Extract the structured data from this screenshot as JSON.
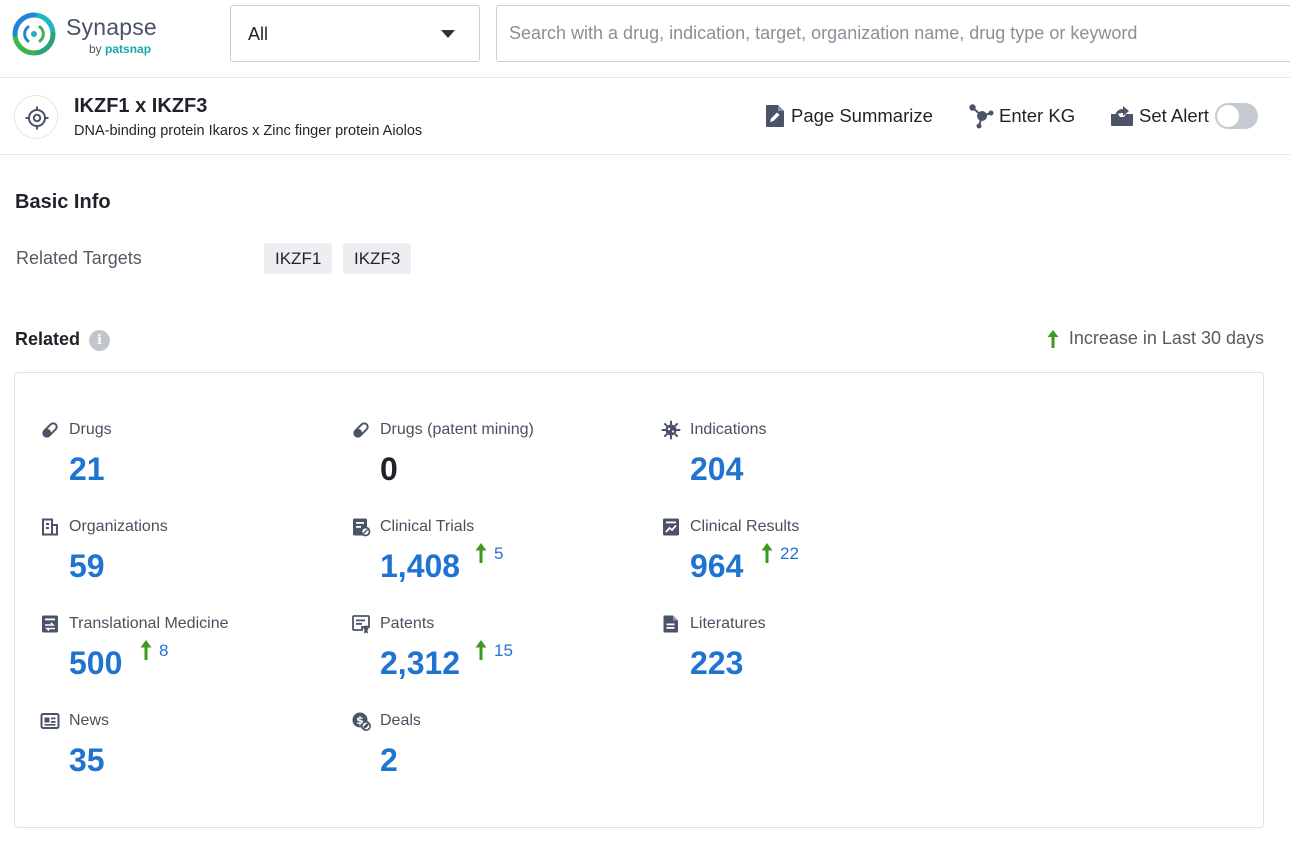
{
  "brand": {
    "name": "Synapse",
    "by_prefix": "by",
    "by_name": "patsnap"
  },
  "search": {
    "scope_value": "All",
    "placeholder": "Search with a drug, indication, target, organization name, drug type or keyword",
    "value": ""
  },
  "header": {
    "title": "IKZF1 x IKZF3",
    "subtitle": "DNA-binding protein Ikaros x Zinc finger protein Aiolos",
    "actions": {
      "summarize": "Page Summarize",
      "kg": "Enter KG",
      "alert": "Set Alert"
    },
    "alert_enabled": false
  },
  "basic_info": {
    "title": "Basic Info",
    "related_targets_label": "Related Targets",
    "related_targets": [
      "IKZF1",
      "IKZF3"
    ]
  },
  "related": {
    "title": "Related",
    "legend": "Increase in Last 30 days",
    "stats": [
      {
        "label": "Drugs",
        "value": "21",
        "increase": null,
        "icon": "pill-icon"
      },
      {
        "label": "Drugs (patent mining)",
        "value": "0",
        "increase": null,
        "icon": "pill-icon"
      },
      {
        "label": "Indications",
        "value": "204",
        "increase": null,
        "icon": "virus-icon"
      },
      {
        "label": "Organizations",
        "value": "59",
        "increase": null,
        "icon": "building-icon"
      },
      {
        "label": "Clinical Trials",
        "value": "1,408",
        "increase": "5",
        "icon": "clinical-trials-icon"
      },
      {
        "label": "Clinical Results",
        "value": "964",
        "increase": "22",
        "icon": "clinical-results-icon"
      },
      {
        "label": "Translational Medicine",
        "value": "500",
        "increase": "8",
        "icon": "translational-medicine-icon"
      },
      {
        "label": "Patents",
        "value": "2,312",
        "increase": "15",
        "icon": "patent-icon"
      },
      {
        "label": "Literatures",
        "value": "223",
        "increase": null,
        "icon": "literature-icon"
      },
      {
        "label": "News",
        "value": "35",
        "increase": null,
        "icon": "news-icon"
      },
      {
        "label": "Deals",
        "value": "2",
        "increase": null,
        "icon": "deals-icon"
      }
    ]
  },
  "colors": {
    "accent": "#1f74d1",
    "increase_arrow": "#3c9a1d",
    "icon": "#4b5366"
  }
}
